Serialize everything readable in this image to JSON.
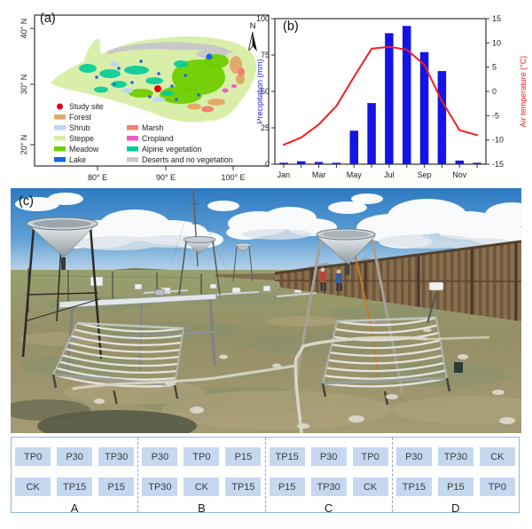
{
  "panel_a": {
    "label": "(a)",
    "north_label": "N",
    "y_axis_ticks": [
      "40° N",
      "30° N",
      "20° N"
    ],
    "x_axis_ticks": [
      "80° E",
      "90° E",
      "100° E"
    ],
    "study_site_color": "#e8000d",
    "legend": {
      "col1": [
        {
          "label": "Study site",
          "color": "#e8000d",
          "shape": "dot"
        },
        {
          "label": "Forest",
          "color": "#e2aa6a",
          "shape": "rect"
        },
        {
          "label": "Shrub",
          "color": "#b9d9f0",
          "shape": "rect"
        },
        {
          "label": "Steppe",
          "color": "#d9efa9",
          "shape": "rect"
        },
        {
          "label": "Meadow",
          "color": "#70cd00",
          "shape": "rect"
        },
        {
          "label": "Lake",
          "color": "#1a66e0",
          "shape": "rect"
        }
      ],
      "col2": [
        {
          "label": "Marsh",
          "color": "#f08070",
          "shape": "rect"
        },
        {
          "label": "Cropland",
          "color": "#ef5ec4",
          "shape": "rect"
        },
        {
          "label": "Alpine vegetation",
          "color": "#00cc99",
          "shape": "rect"
        },
        {
          "label": "Deserts and no vegetation",
          "color": "#c8c8c8",
          "shape": "rect"
        }
      ]
    }
  },
  "panel_b": {
    "label": "(b)"
  },
  "panel_c": {
    "label": "(c)"
  },
  "chart_data": {
    "type": "bar+line",
    "categories": [
      "Jan",
      "Feb",
      "Mar",
      "Apr",
      "May",
      "Jun",
      "Jul",
      "Aug",
      "Sep",
      "Oct",
      "Nov",
      "Dec"
    ],
    "x_tick_labels": [
      "Jan",
      "Mar",
      "May",
      "Jul",
      "Sep",
      "Nov"
    ],
    "series": [
      {
        "name": "Precipitation",
        "type": "bar",
        "axis": "left",
        "color": "#1414e6",
        "values": [
          1,
          2,
          1.5,
          1,
          23,
          42,
          90,
          95,
          77,
          64,
          2.5,
          1
        ]
      },
      {
        "name": "Air temperature",
        "type": "line",
        "axis": "right",
        "color": "#f51d1d",
        "values": [
          -11,
          -9.5,
          -6.8,
          -3,
          3,
          8.8,
          9.2,
          8.6,
          5.5,
          -2,
          -8,
          -9
        ]
      }
    ],
    "left_axis": {
      "label": "Precipitation (mm)",
      "color": "#2222e8",
      "min": 0,
      "max": 100,
      "ticks": [
        0,
        25,
        50,
        75,
        100
      ]
    },
    "right_axis": {
      "label": "Air temperature (°C)",
      "color": "#f51d1d",
      "min": -15,
      "max": 15,
      "ticks": [
        -15,
        -10,
        -5,
        0,
        5,
        10,
        15
      ]
    },
    "grid": false,
    "legend_position": "none"
  },
  "plot_layout": {
    "cell_bg": "#c5d8ef",
    "border_color": "#8fb8e2",
    "blocks": [
      {
        "label": "A",
        "rows": [
          [
            "TP0",
            "P30",
            "TP30"
          ],
          [
            "CK",
            "TP15",
            "P15"
          ]
        ]
      },
      {
        "label": "B",
        "rows": [
          [
            "P30",
            "TP0",
            "P15"
          ],
          [
            "TP30",
            "CK",
            "TP15"
          ]
        ]
      },
      {
        "label": "C",
        "rows": [
          [
            "TP15",
            "P30",
            "TP0"
          ],
          [
            "P15",
            "TP30",
            "CK"
          ]
        ]
      },
      {
        "label": "D",
        "rows": [
          [
            "P30",
            "TP30",
            "CK"
          ],
          [
            "TP15",
            "P15",
            "TP0"
          ]
        ]
      }
    ]
  }
}
